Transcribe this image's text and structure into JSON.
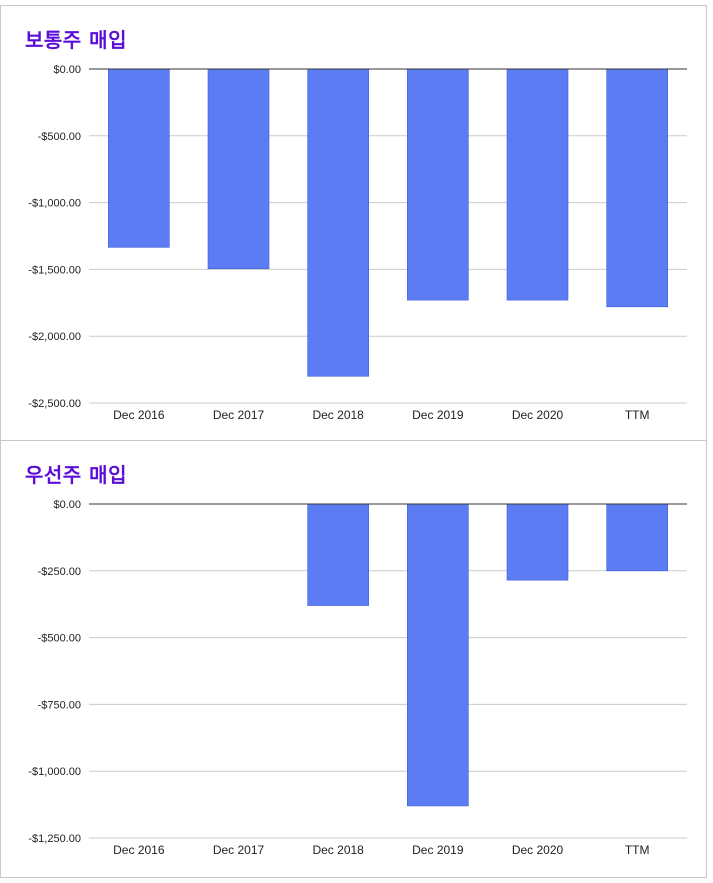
{
  "chart_data": [
    {
      "type": "bar",
      "title": "보통주 매입",
      "categories": [
        "Dec 2016",
        "Dec 2017",
        "Dec 2018",
        "Dec 2019",
        "Dec 2020",
        "TTM"
      ],
      "values": [
        -1335,
        -1495,
        -2300,
        -1730,
        -1730,
        -1780
      ],
      "ylim": [
        -2500,
        0
      ],
      "yticks": [
        0,
        -500,
        -1000,
        -1500,
        -2000,
        -2500
      ],
      "ytick_labels": [
        "$0.00",
        "-$500.00",
        "-$1,000.00",
        "-$1,500.00",
        "-$2,000.00",
        "-$2,500.00"
      ],
      "bar_color": "#5b7cf3",
      "grid": true,
      "xlabel": "",
      "ylabel": ""
    },
    {
      "type": "bar",
      "title": "우선주 매입",
      "categories": [
        "Dec 2016",
        "Dec 2017",
        "Dec 2018",
        "Dec 2019",
        "Dec 2020",
        "TTM"
      ],
      "values": [
        0,
        0,
        -380,
        -1130,
        -285,
        -250
      ],
      "ylim": [
        -1250,
        0
      ],
      "yticks": [
        0,
        -250,
        -500,
        -750,
        -1000,
        -1250
      ],
      "ytick_labels": [
        "$0.00",
        "-$250.00",
        "-$500.00",
        "-$750.00",
        "-$1,000.00",
        "-$1,250.00"
      ],
      "bar_color": "#5b7cf3",
      "grid": true,
      "xlabel": "",
      "ylabel": ""
    }
  ]
}
